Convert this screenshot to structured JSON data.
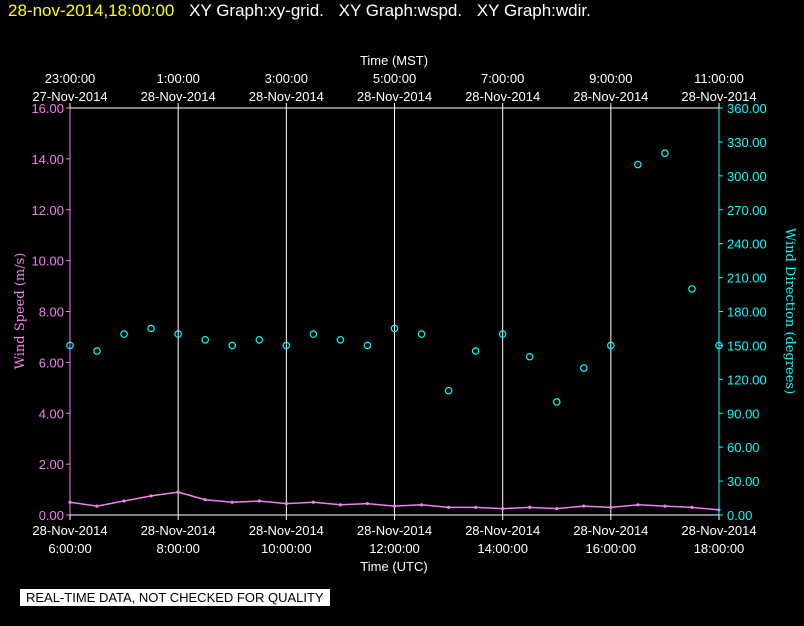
{
  "header": {
    "timestamp": "28-nov-2014,18:00:00",
    "graphs": [
      "XY Graph:xy-grid.",
      "XY Graph:wspd.",
      "XY Graph:wdir."
    ]
  },
  "footer": {
    "quality_note": "REAL-TIME DATA, NOT CHECKED FOR QUALITY"
  },
  "colors": {
    "background": "#000000",
    "wind_speed": "#ee82ee",
    "wind_direction": "#00ffff",
    "grid": "#ffffff",
    "timestamp": "#ffff00"
  },
  "chart_data": {
    "type": "scatter",
    "title": "",
    "x_top_label": "Time (MST)",
    "x_bottom_label": "Time (UTC)",
    "x_top_ticks": [
      {
        "time": "23:00:00",
        "date": "27-Nov-2014"
      },
      {
        "time": "1:00:00",
        "date": "28-Nov-2014"
      },
      {
        "time": "3:00:00",
        "date": "28-Nov-2014"
      },
      {
        "time": "5:00:00",
        "date": "28-Nov-2014"
      },
      {
        "time": "7:00:00",
        "date": "28-Nov-2014"
      },
      {
        "time": "9:00:00",
        "date": "28-Nov-2014"
      },
      {
        "time": "11:00:00",
        "date": "28-Nov-2014"
      }
    ],
    "x_bottom_ticks": [
      {
        "date": "28-Nov-2014",
        "time": "6:00:00"
      },
      {
        "date": "28-Nov-2014",
        "time": "8:00:00"
      },
      {
        "date": "28-Nov-2014",
        "time": "10:00:00"
      },
      {
        "date": "28-Nov-2014",
        "time": "12:00:00"
      },
      {
        "date": "28-Nov-2014",
        "time": "14:00:00"
      },
      {
        "date": "28-Nov-2014",
        "time": "16:00:00"
      },
      {
        "date": "28-Nov-2014",
        "time": "18:00:00"
      }
    ],
    "x_range_utc": [
      "2014-11-28 06:00",
      "2014-11-28 18:00"
    ],
    "y_left": {
      "label": "Wind Speed (m/s)",
      "range": [
        0,
        16
      ],
      "ticks": [
        "0.00",
        "2.00",
        "4.00",
        "6.00",
        "8.00",
        "10.00",
        "12.00",
        "14.00",
        "16.00"
      ]
    },
    "y_right": {
      "label": "Wind Direction (degrees)",
      "range": [
        0,
        360
      ],
      "ticks": [
        "0.00",
        "30.00",
        "60.00",
        "90.00",
        "120.00",
        "150.00",
        "180.00",
        "210.00",
        "240.00",
        "270.00",
        "300.00",
        "330.00",
        "360.00"
      ]
    },
    "grid": "vertical",
    "series": [
      {
        "name": "Wind Speed (m/s)",
        "axis": "left",
        "style": "line",
        "utc_hours": [
          6,
          6.5,
          7,
          7.5,
          8,
          8.5,
          9,
          9.5,
          10,
          10.5,
          11,
          11.5,
          12,
          12.5,
          13,
          13.5,
          14,
          14.5,
          15,
          15.5,
          16,
          16.5,
          17,
          17.5,
          18
        ],
        "values": [
          0.5,
          0.35,
          0.55,
          0.75,
          0.9,
          0.6,
          0.5,
          0.55,
          0.45,
          0.5,
          0.4,
          0.45,
          0.35,
          0.4,
          0.3,
          0.3,
          0.25,
          0.3,
          0.25,
          0.35,
          0.3,
          0.4,
          0.35,
          0.3,
          0.2
        ]
      },
      {
        "name": "Wind Direction (degrees)",
        "axis": "right",
        "style": "points",
        "utc_hours": [
          6,
          6.5,
          7,
          7.5,
          8,
          8.5,
          9,
          9.5,
          10,
          10.5,
          11,
          11.5,
          12,
          12.5,
          13,
          13.5,
          14,
          14.5,
          15,
          15.5,
          16,
          16.5,
          17,
          17.5,
          18
        ],
        "values": [
          150,
          145,
          160,
          165,
          160,
          155,
          150,
          155,
          150,
          160,
          155,
          150,
          165,
          160,
          110,
          145,
          160,
          140,
          100,
          130,
          150,
          310,
          320,
          200,
          150
        ]
      }
    ]
  }
}
